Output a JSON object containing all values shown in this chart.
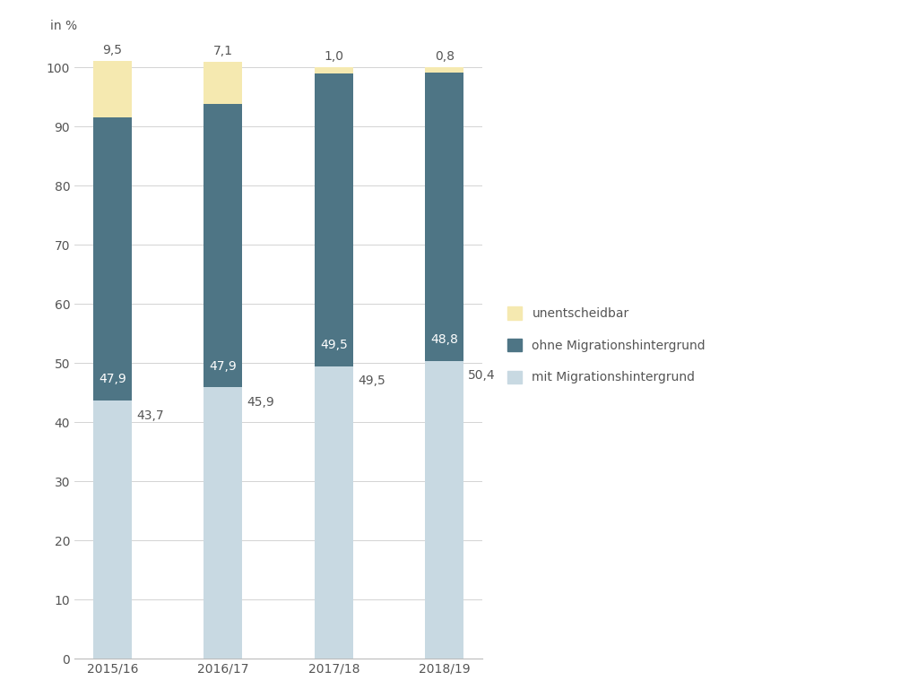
{
  "categories": [
    "2015/16",
    "2016/17",
    "2017/18",
    "2018/19"
  ],
  "mit_migration": [
    43.7,
    45.9,
    49.5,
    50.4
  ],
  "ohne_migration": [
    47.9,
    47.9,
    49.5,
    48.8
  ],
  "unentscheidbar": [
    9.5,
    7.1,
    1.0,
    0.8
  ],
  "color_mit": "#c8d9e2",
  "color_ohne": "#4e7585",
  "color_unent": "#f5e9b0",
  "ylabel": "in %",
  "ylim": [
    0,
    106
  ],
  "yticks": [
    0,
    10,
    20,
    30,
    40,
    50,
    60,
    70,
    80,
    90,
    100
  ],
  "legend_labels": [
    "unentscheidbar",
    "ohne Migrationshintergrund",
    "mit Migrationshintergrund"
  ],
  "bar_width": 0.35,
  "label_fontsize": 10,
  "tick_fontsize": 10,
  "ylabel_fontsize": 10
}
